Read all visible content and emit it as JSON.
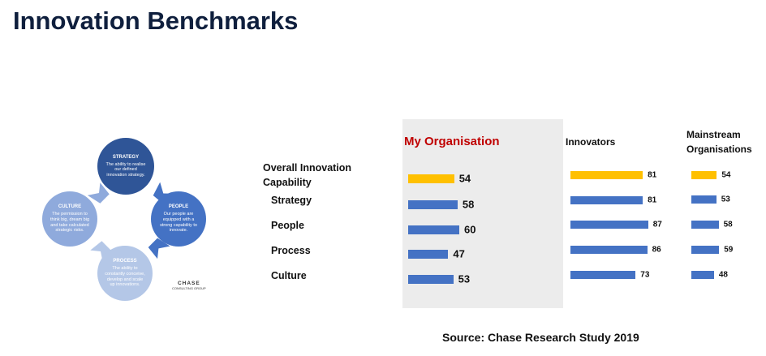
{
  "title": "Innovation Benchmarks",
  "diagram": {
    "nodes": [
      {
        "heading": "STRATEGY",
        "text": "The ability to realise our defined innovation strategy."
      },
      {
        "heading": "PEOPLE",
        "text": "Our people are equipped with a strong capability to innovate."
      },
      {
        "heading": "PROCESS",
        "text": "The ability to constantly conceive, develop and scale up innovations."
      },
      {
        "heading": "CULTURE",
        "text": "The permission to think big, dream big and take calculated strategic risks."
      }
    ],
    "logo": {
      "name": "CHASE",
      "subtitle": "CONSULTING GROUP"
    }
  },
  "chart_data": [
    {
      "type": "hbar",
      "title": "My Organisation",
      "title_color": "#c00000",
      "categories": [
        "Overall Innovation Capability",
        "Strategy",
        "People",
        "Process",
        "Culture"
      ],
      "values": [
        54,
        58,
        60,
        47,
        53
      ],
      "colors": [
        "#ffc000",
        "#4472c4",
        "#4472c4",
        "#4472c4",
        "#4472c4"
      ]
    },
    {
      "type": "hbar",
      "title": "Innovators",
      "title_color": "#111111",
      "values": [
        81,
        81,
        87,
        86,
        73
      ],
      "colors": [
        "#ffc000",
        "#4472c4",
        "#4472c4",
        "#4472c4",
        "#4472c4"
      ]
    },
    {
      "type": "hbar",
      "title": "Mainstream Organisations",
      "title_color": "#111111",
      "values": [
        54,
        53,
        58,
        59,
        48
      ],
      "colors": [
        "#ffc000",
        "#4472c4",
        "#4472c4",
        "#4472c4",
        "#4472c4"
      ]
    }
  ],
  "source": "Source: Chase Research Study  2019"
}
